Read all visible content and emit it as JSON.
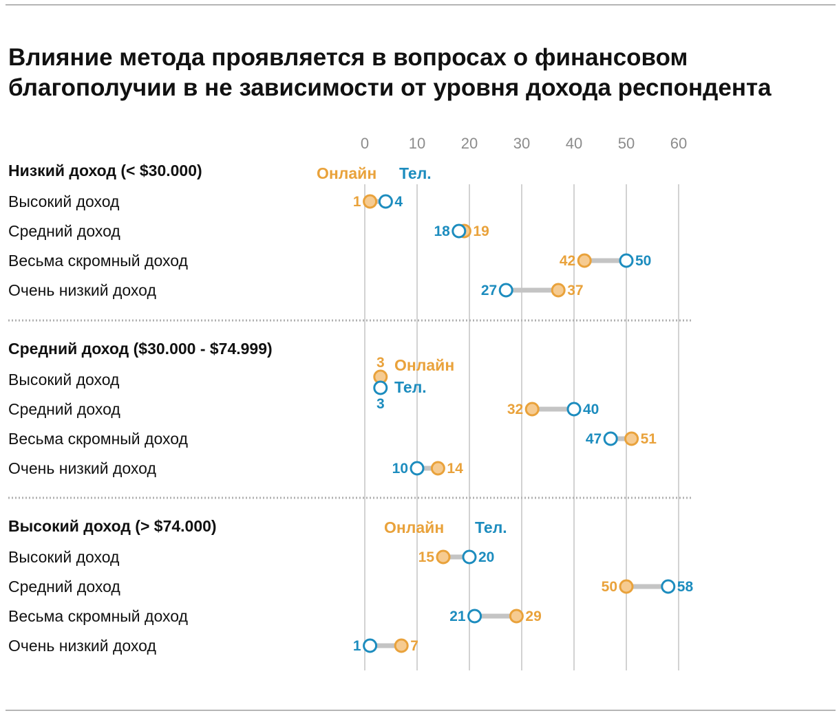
{
  "title": "Влияние метода проявляется в вопросах о финансовом благополучии в не зависимости от уровня дохода респондента",
  "colors": {
    "online": "#E9A23B",
    "online_fill": "#F6CB91",
    "phone": "#1C8CBE",
    "grid": "#D2D2D2",
    "connector": "#C4C4C4"
  },
  "legend": {
    "online": "Онлайн",
    "phone": "Тел."
  },
  "chart_data": {
    "type": "dot",
    "xlim": [
      0,
      60
    ],
    "ticks": [
      0,
      10,
      20,
      30,
      40,
      50,
      60
    ],
    "grid": true,
    "legend_placement": "above each group",
    "series": [
      {
        "key": "online",
        "name": "Онлайн",
        "color": "#E9A23B"
      },
      {
        "key": "phone",
        "name": "Тел.",
        "color": "#1C8CBE"
      }
    ],
    "groups": [
      {
        "label": "Низкий доход (< $30.000)",
        "rows": [
          {
            "label": "Высокий доход",
            "online": 1,
            "phone": 4
          },
          {
            "label": "Средний доход",
            "online": 19,
            "phone": 18
          },
          {
            "label": "Весьма скромный доход",
            "online": 42,
            "phone": 50
          },
          {
            "label": "Очень низкий доход",
            "online": 37,
            "phone": 27
          }
        ]
      },
      {
        "label": "Средний доход ($30.000 - $74.999)",
        "rows": [
          {
            "label": "Высокий доход",
            "online": 3,
            "phone": 3
          },
          {
            "label": "Средний доход",
            "online": 32,
            "phone": 40
          },
          {
            "label": "Весьма скромный доход",
            "online": 51,
            "phone": 47
          },
          {
            "label": "Очень низкий доход",
            "online": 14,
            "phone": 10
          }
        ]
      },
      {
        "label": "Высокий доход (> $74.000)",
        "rows": [
          {
            "label": "Высокий доход",
            "online": 15,
            "phone": 20
          },
          {
            "label": "Средний доход",
            "online": 50,
            "phone": 58
          },
          {
            "label": "Весьма скромный доход",
            "online": 29,
            "phone": 21
          },
          {
            "label": "Очень низкий доход",
            "online": 7,
            "phone": 1
          }
        ]
      }
    ]
  }
}
